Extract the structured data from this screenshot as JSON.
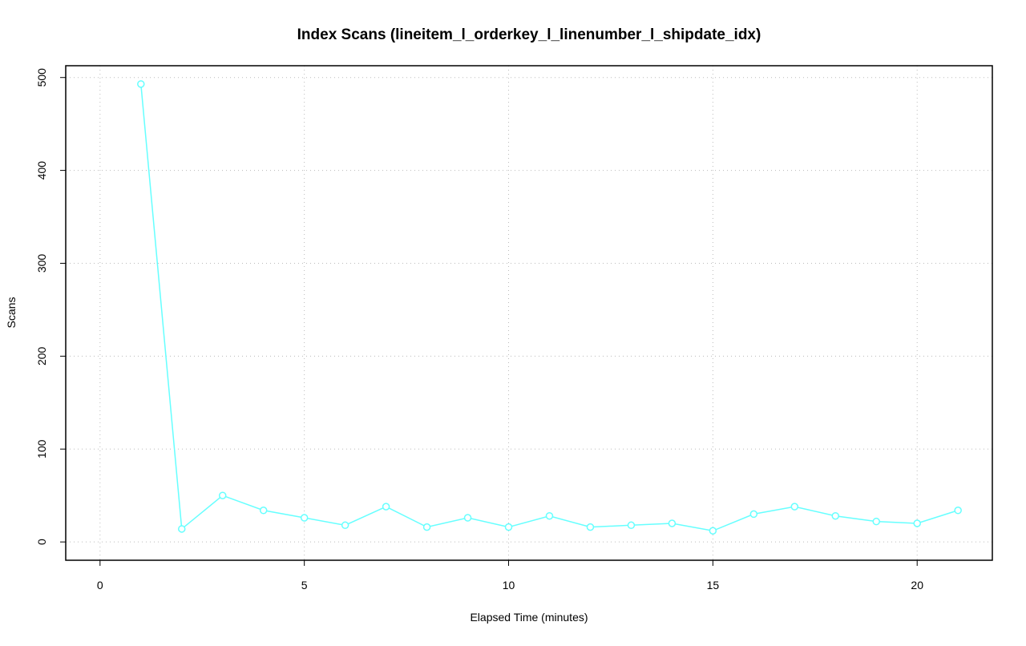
{
  "chart_data": {
    "type": "line",
    "title": "Index Scans (lineitem_l_orderkey_l_linenumber_l_shipdate_idx)",
    "x_label": "Elapsed Time (minutes)",
    "y_label": "Scans",
    "x": [
      1,
      2,
      3,
      4,
      5,
      6,
      7,
      8,
      9,
      10,
      11,
      12,
      13,
      14,
      15,
      16,
      17,
      18,
      19,
      20,
      21
    ],
    "series": [
      {
        "color": "#66ffff",
        "values": [
          493,
          14,
          50,
          34,
          26,
          18,
          38,
          16,
          26,
          16,
          28,
          16,
          18,
          20,
          12,
          30,
          38,
          28,
          22,
          20,
          34
        ]
      }
    ],
    "xlim": [
      -0.84,
      21.84
    ],
    "xticks": [
      0,
      5,
      10,
      15,
      20
    ],
    "ylim": [
      -19.7,
      512.7
    ],
    "yticks": [
      0,
      100,
      200,
      300,
      400,
      500
    ],
    "grid": true
  }
}
